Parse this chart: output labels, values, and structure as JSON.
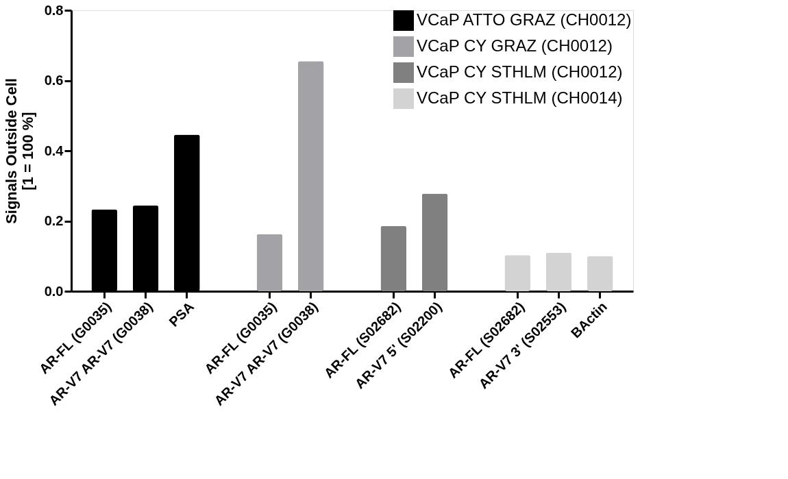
{
  "chart_data": {
    "type": "bar",
    "ylabel": "Signals Outside Cell\n[1 = 100 %]",
    "categories": [
      "AR-FL (G0035)",
      "AR-V7 AR-V7 (G0038)",
      "PSA",
      null,
      "AR-FL (G0035)",
      "AR-V7 AR-V7 (G0038)",
      null,
      "AR-FL (S02682)",
      "AR-V7 5' (S02200)",
      null,
      "AR-FL (S02682)",
      "AR-V7 3'  (S02553)",
      "BActin"
    ],
    "series": [
      {
        "name": "VCaP ATTO GRAZ (CH0012)",
        "color": "#000000",
        "values": [
          0.233,
          0.244,
          0.446,
          null,
          null,
          null,
          null,
          null,
          null,
          null,
          null,
          null,
          null
        ]
      },
      {
        "name": "VCaP CY GRAZ (CH0012)",
        "color": "#a3a3a7",
        "values": [
          null,
          null,
          null,
          null,
          0.163,
          0.655,
          null,
          null,
          null,
          null,
          null,
          null,
          null
        ]
      },
      {
        "name": "VCaP CY STHLM (CH0012)",
        "color": "#808080",
        "values": [
          null,
          null,
          null,
          null,
          null,
          null,
          null,
          0.186,
          0.278,
          null,
          null,
          null,
          null
        ]
      },
      {
        "name": "VCaP CY STHLM (CH0014)",
        "color": "#d3d3d3",
        "values": [
          null,
          null,
          null,
          null,
          null,
          null,
          null,
          null,
          null,
          null,
          0.103,
          0.11,
          0.1
        ]
      }
    ],
    "ylim": [
      0,
      0.8
    ],
    "yticks": [
      {
        "value": 0,
        "label": "0.0"
      },
      {
        "value": 0.2,
        "label": "0.2"
      },
      {
        "value": 0.4,
        "label": "0.4"
      },
      {
        "value": 0.6,
        "label": "0.6"
      },
      {
        "value": 0.8,
        "label": "0.8"
      }
    ],
    "grid": false,
    "legend": "top right"
  }
}
